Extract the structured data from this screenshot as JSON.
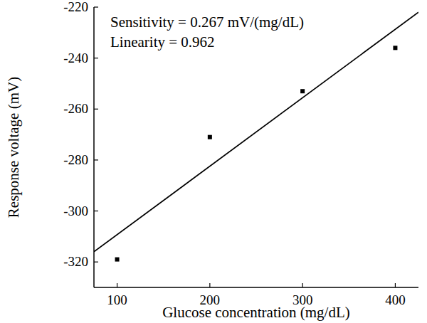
{
  "chart_data": {
    "type": "scatter",
    "x_label": "Glucose concentration (mg/dL)",
    "y_label": "Response voltage (mV)",
    "annotations": [
      "Sensitivity = 0.267 mV/(mg/dL)",
      "Linearity = 0.962"
    ],
    "xlim": [
      75,
      425
    ],
    "xticks": [
      100,
      200,
      300,
      400
    ],
    "ylim": [
      -330,
      -220
    ],
    "yticks": [
      -320,
      -300,
      -280,
      -260,
      -240,
      -220
    ],
    "grid": false,
    "series": [
      {
        "type": "scatter",
        "marker": "square",
        "color": "#000000",
        "x": [
          100,
          200,
          300,
          400
        ],
        "values": [
          -319,
          -271,
          -253,
          -236
        ]
      },
      {
        "type": "line",
        "line_style": "solid",
        "color": "#000000",
        "x": [
          75,
          425
        ],
        "values": [
          -316,
          -222
        ]
      }
    ]
  }
}
